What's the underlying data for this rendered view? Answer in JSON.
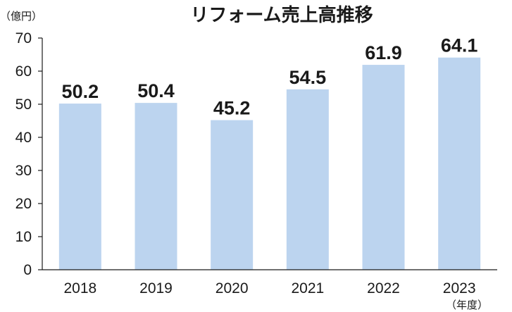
{
  "chart_data": {
    "type": "bar",
    "title": "リフォーム売上高推移",
    "ylabel": "（億円）",
    "xlabel": "（年度）",
    "categories": [
      "2018",
      "2019",
      "2020",
      "2021",
      "2022",
      "2023"
    ],
    "values": [
      50.2,
      50.4,
      45.2,
      54.5,
      61.9,
      64.1
    ],
    "data_labels": [
      "50.2",
      "50.4",
      "45.2",
      "54.5",
      "61.9",
      "64.1"
    ],
    "ylim": [
      0,
      70
    ],
    "yticks": [
      "0",
      "10",
      "20",
      "30",
      "40",
      "50",
      "60",
      "70"
    ],
    "grid": false,
    "legend": "none",
    "bar_color": "#bcd4ef"
  }
}
